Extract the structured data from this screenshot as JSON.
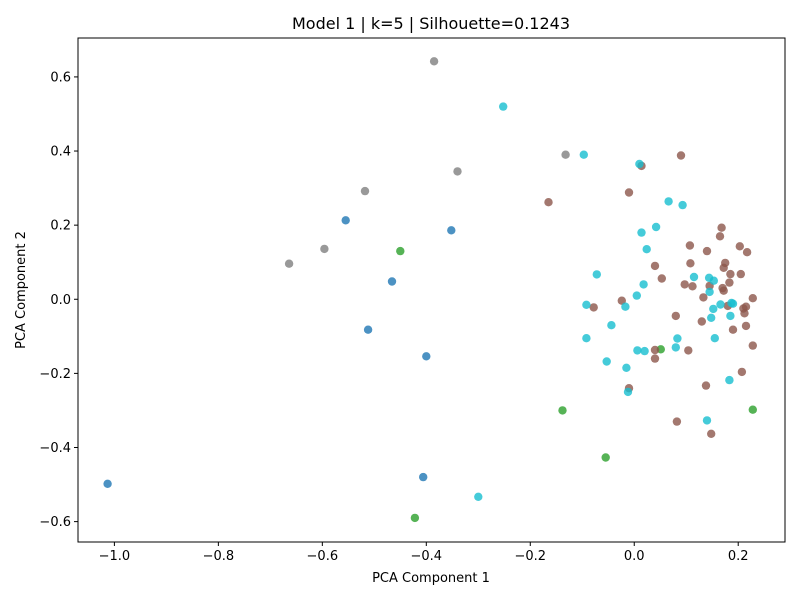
{
  "chart_data": {
    "type": "scatter",
    "title": "Model 1 | k=5 | Silhouette=0.1243",
    "xlabel": "PCA Component 1",
    "ylabel": "PCA Component 2",
    "xlim": [
      -1.07,
      0.29
    ],
    "ylim": [
      -0.655,
      0.705
    ],
    "xticks": [
      -1.0,
      -0.8,
      -0.6,
      -0.4,
      -0.2,
      0.0,
      0.2
    ],
    "xtick_labels": [
      "−1.0",
      "−0.8",
      "−0.6",
      "−0.4",
      "−0.2",
      "0.0",
      "0.2"
    ],
    "yticks": [
      -0.6,
      -0.4,
      -0.2,
      0.0,
      0.2,
      0.4,
      0.6
    ],
    "ytick_labels": [
      "−0.6",
      "−0.4",
      "−0.2",
      "0.0",
      "0.2",
      "0.4",
      "0.6"
    ],
    "grid": false,
    "series": [
      {
        "color": "#1f77b4",
        "points": [
          [
            -1.013,
            -0.498
          ],
          [
            -0.555,
            0.213
          ],
          [
            -0.512,
            -0.082
          ],
          [
            -0.466,
            0.048
          ],
          [
            -0.406,
            -0.48
          ],
          [
            -0.4,
            -0.154
          ],
          [
            -0.352,
            0.186
          ]
        ]
      },
      {
        "color": "#2ca02c",
        "points": [
          [
            -0.45,
            0.13
          ],
          [
            -0.422,
            -0.59
          ],
          [
            -0.138,
            -0.3
          ],
          [
            -0.055,
            -0.427
          ],
          [
            0.051,
            -0.135
          ],
          [
            0.228,
            -0.298
          ]
        ]
      },
      {
        "color": "#8c564b",
        "points": [
          [
            -0.165,
            0.262
          ],
          [
            -0.078,
            -0.022
          ],
          [
            -0.024,
            -0.004
          ],
          [
            -0.01,
            0.288
          ],
          [
            -0.01,
            -0.24
          ],
          [
            0.014,
            0.36
          ],
          [
            0.04,
            0.09
          ],
          [
            0.04,
            -0.137
          ],
          [
            0.04,
            -0.16
          ],
          [
            0.053,
            0.056
          ],
          [
            0.08,
            -0.045
          ],
          [
            0.082,
            -0.33
          ],
          [
            0.09,
            0.388
          ],
          [
            0.097,
            0.04
          ],
          [
            0.104,
            -0.138
          ],
          [
            0.107,
            0.145
          ],
          [
            0.108,
            0.097
          ],
          [
            0.112,
            0.035
          ],
          [
            0.13,
            -0.06
          ],
          [
            0.133,
            0.005
          ],
          [
            0.138,
            -0.233
          ],
          [
            0.14,
            0.13
          ],
          [
            0.145,
            0.036
          ],
          [
            0.148,
            -0.363
          ],
          [
            0.165,
            0.17
          ],
          [
            0.168,
            0.193
          ],
          [
            0.17,
            0.03
          ],
          [
            0.172,
            0.085
          ],
          [
            0.172,
            0.023
          ],
          [
            0.175,
            0.098
          ],
          [
            0.18,
            -0.018
          ],
          [
            0.183,
            0.045
          ],
          [
            0.185,
            0.068
          ],
          [
            0.19,
            -0.082
          ],
          [
            0.203,
            0.143
          ],
          [
            0.205,
            0.068
          ],
          [
            0.207,
            -0.196
          ],
          [
            0.21,
            -0.025
          ],
          [
            0.212,
            -0.038
          ],
          [
            0.215,
            -0.02
          ],
          [
            0.215,
            -0.072
          ],
          [
            0.217,
            0.127
          ],
          [
            0.228,
            0.003
          ],
          [
            0.228,
            -0.125
          ]
        ]
      },
      {
        "color": "#7f7f7f",
        "points": [
          [
            -0.664,
            0.096
          ],
          [
            -0.596,
            0.136
          ],
          [
            -0.518,
            0.292
          ],
          [
            -0.385,
            0.642
          ],
          [
            -0.34,
            0.345
          ],
          [
            -0.132,
            0.39
          ]
        ]
      },
      {
        "color": "#17becf",
        "points": [
          [
            -0.252,
            0.52
          ],
          [
            -0.3,
            -0.533
          ],
          [
            -0.097,
            0.39
          ],
          [
            -0.092,
            -0.015
          ],
          [
            -0.092,
            -0.105
          ],
          [
            -0.072,
            0.067
          ],
          [
            -0.053,
            -0.168
          ],
          [
            -0.044,
            -0.07
          ],
          [
            -0.017,
            -0.02
          ],
          [
            -0.015,
            -0.185
          ],
          [
            -0.012,
            -0.25
          ],
          [
            0.005,
            0.01
          ],
          [
            0.006,
            -0.138
          ],
          [
            0.01,
            0.365
          ],
          [
            0.014,
            0.18
          ],
          [
            0.018,
            0.04
          ],
          [
            0.02,
            -0.14
          ],
          [
            0.024,
            0.135
          ],
          [
            0.042,
            0.195
          ],
          [
            0.066,
            0.264
          ],
          [
            0.08,
            -0.13
          ],
          [
            0.083,
            -0.106
          ],
          [
            0.093,
            0.254
          ],
          [
            0.115,
            0.06
          ],
          [
            0.14,
            -0.327
          ],
          [
            0.144,
            0.058
          ],
          [
            0.145,
            0.02
          ],
          [
            0.148,
            -0.05
          ],
          [
            0.152,
            -0.026
          ],
          [
            0.153,
            0.05
          ],
          [
            0.155,
            -0.105
          ],
          [
            0.166,
            -0.014
          ],
          [
            0.183,
            -0.218
          ],
          [
            0.185,
            -0.045
          ],
          [
            0.187,
            -0.01
          ],
          [
            0.19,
            -0.012
          ]
        ]
      }
    ]
  }
}
